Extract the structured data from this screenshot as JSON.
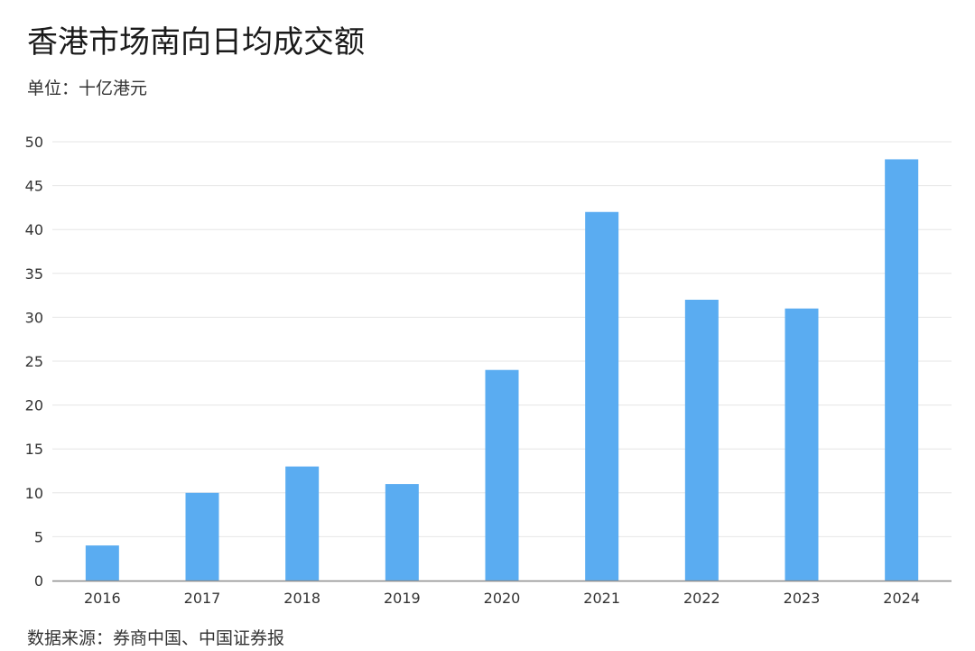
{
  "header": {
    "title": "香港市场南向日均成交额",
    "unit": "单位：十亿港元"
  },
  "footer": {
    "source": "数据来源：券商中国、中国证券报"
  },
  "colors": {
    "bar": "#5aacf1",
    "grid": "#e6e6e6",
    "axis": "#8c8c8c"
  },
  "chart_data": {
    "type": "bar",
    "categories": [
      "2016",
      "2017",
      "2018",
      "2019",
      "2020",
      "2021",
      "2022",
      "2023",
      "2024"
    ],
    "values": [
      4,
      10,
      13,
      11,
      24,
      42,
      32,
      31,
      48
    ],
    "ylim": [
      0,
      50
    ],
    "yticks": [
      "0",
      "5",
      "10",
      "15",
      "20",
      "25",
      "30",
      "35",
      "40",
      "45",
      "50"
    ],
    "grid": true,
    "legend": "none"
  }
}
